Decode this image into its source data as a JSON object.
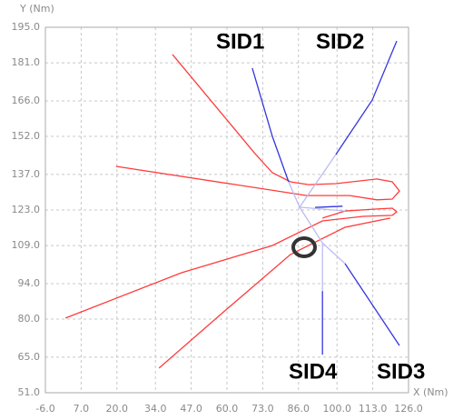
{
  "chart_data": {
    "type": "line",
    "xlabel": "X (Nm)",
    "ylabel": "Y (Nm)",
    "xlim": [
      -6,
      126
    ],
    "xticks": [
      {
        "value": -6,
        "label": "-6.0"
      },
      {
        "value": 7,
        "label": "7.0"
      },
      {
        "value": 20,
        "label": "20.0"
      },
      {
        "value": 34,
        "label": "34.0"
      },
      {
        "value": 47,
        "label": "47.0"
      },
      {
        "value": 60,
        "label": "60.0"
      },
      {
        "value": 73,
        "label": "73.0"
      },
      {
        "value": 86,
        "label": "86.0"
      },
      {
        "value": 100,
        "label": "100.0"
      },
      {
        "value": 113,
        "label": "113.0"
      },
      {
        "value": 126,
        "label": "126.0"
      }
    ],
    "ylim": [
      51,
      195
    ],
    "yticks": [
      {
        "value": 51,
        "label": "51.0"
      },
      {
        "value": 65,
        "label": "65.0"
      },
      {
        "value": 80,
        "label": "80.0"
      },
      {
        "value": 94,
        "label": "94.0"
      },
      {
        "value": 109,
        "label": "109.0"
      },
      {
        "value": 123,
        "label": "123.0"
      },
      {
        "value": 137,
        "label": "137.0"
      },
      {
        "value": 152,
        "label": "152.0"
      },
      {
        "value": 166,
        "label": "166.0"
      },
      {
        "value": 181,
        "label": "181.0"
      },
      {
        "value": 195,
        "label": "195.0"
      }
    ],
    "grid": true,
    "annotations": [
      "SID1",
      "SID2",
      "SID3",
      "SID4"
    ],
    "series": [
      {
        "color": "#ff3b3b",
        "x": [
          40.2,
          56.7,
          69.9,
          76.5,
          83.1,
          89.7,
          99.6,
          114.5,
          120.1,
          122.7,
          120.1,
          114.5,
          104.6,
          89,
          19.7,
          null,
          1.3,
          43.5,
          76.5,
          94.7,
          109.5,
          120.1,
          121.7,
          120.1,
          114.5,
          102.9,
          94.7,
          null,
          35.3,
          60,
          83.1,
          102.9,
          119.4
        ],
        "values": [
          184.3,
          162.8,
          145.6,
          137.7,
          134.1,
          133,
          133.4,
          135.2,
          134.1,
          130.5,
          127.3,
          127,
          128.7,
          128.7,
          140.2,
          null,
          80.4,
          98.3,
          109,
          118.7,
          120.5,
          120.9,
          122.3,
          123.7,
          123.4,
          122.6,
          119.8,
          null,
          60.7,
          84,
          105.5,
          116.2,
          119.8
        ]
      },
      {
        "color": "#3535e0",
        "x": [
          69.2,
          76.5,
          82.4,
          null,
          121.7,
          112.8,
          99.6,
          null,
          102.9,
          122.7,
          null,
          94.7,
          94.7,
          null,
          92,
          102
        ],
        "values": [
          178.9,
          152,
          134.1,
          null,
          189.6,
          166.3,
          144.9,
          null,
          101.9,
          69.6,
          null,
          91.1,
          66,
          null,
          124,
          124.5
        ]
      },
      {
        "color": "#bcbcf2",
        "x": [
          82.4,
          86.4,
          99.6,
          null,
          86.4,
          94.7,
          102.9,
          null,
          94.7,
          94.7,
          null,
          86.4,
          102.9
        ],
        "values": [
          134.1,
          124.1,
          144.9,
          null,
          124.1,
          110,
          101.9,
          null,
          110,
          91.1,
          null,
          124.1,
          122.6
        ]
      }
    ]
  }
}
